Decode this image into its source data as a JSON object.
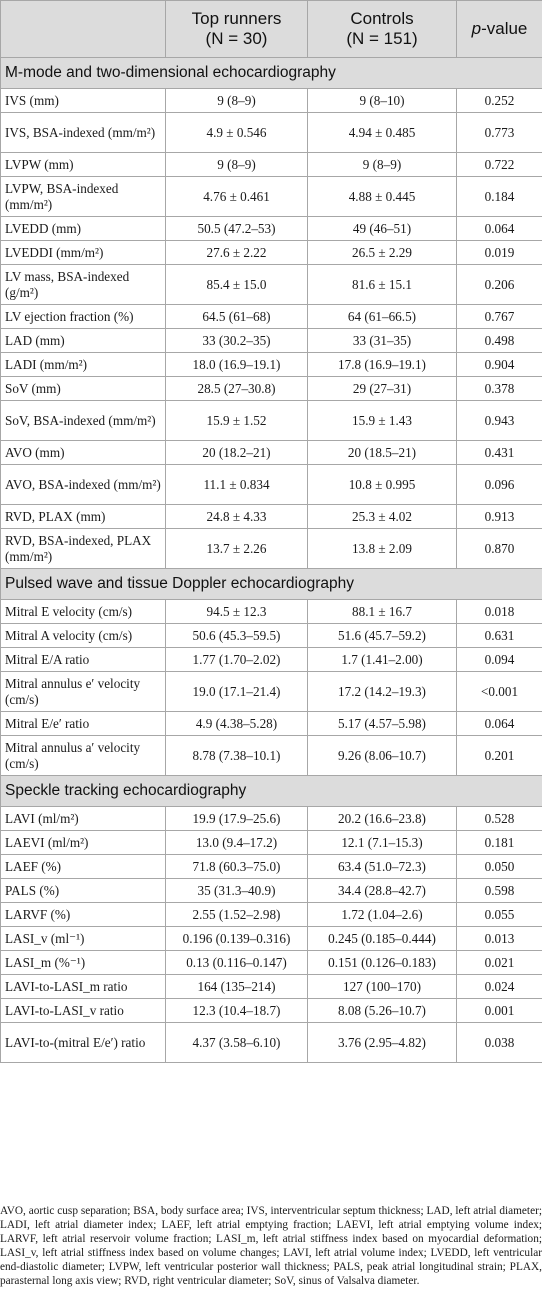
{
  "header": {
    "col1": "",
    "col2_line1": "Top runners",
    "col2_n": "(N = 30)",
    "col3_line1": "Controls",
    "col3_n": "(N = 151)",
    "col4_p": "p",
    "col4_rest": "-value"
  },
  "sections": [
    {
      "title": "M-mode and two-dimensional echocardiography",
      "rows": [
        {
          "label": "IVS (mm)",
          "top": "9 (8–9)",
          "ctrl": "9 (8–10)",
          "p": "0.252"
        },
        {
          "label": "IVS, BSA-indexed (mm/m²)",
          "top": "4.9 ± 0.546",
          "ctrl": "4.94 ± 0.485",
          "p": "0.773"
        },
        {
          "label": "LVPW (mm)",
          "top": "9 (8–9)",
          "ctrl": "9 (8–9)",
          "p": "0.722"
        },
        {
          "label": "LVPW, BSA-indexed (mm/m²)",
          "top": "4.76 ± 0.461",
          "ctrl": "4.88 ± 0.445",
          "p": "0.184"
        },
        {
          "label": "LVEDD (mm)",
          "top": "50.5 (47.2–53)",
          "ctrl": "49 (46–51)",
          "p": "0.064"
        },
        {
          "label": "LVEDDI (mm/m²)",
          "top": "27.6 ± 2.22",
          "ctrl": "26.5 ± 2.29",
          "p": "0.019"
        },
        {
          "label": "LV mass, BSA-indexed (g/m²)",
          "top": "85.4 ± 15.0",
          "ctrl": "81.6 ± 15.1",
          "p": "0.206"
        },
        {
          "label": "LV ejection fraction (%)",
          "top": "64.5 (61–68)",
          "ctrl": "64 (61–66.5)",
          "p": "0.767"
        },
        {
          "label": "LAD (mm)",
          "top": "33 (30.2–35)",
          "ctrl": "33 (31–35)",
          "p": "0.498"
        },
        {
          "label": "LADI (mm/m²)",
          "top": "18.0 (16.9–19.1)",
          "ctrl": "17.8 (16.9–19.1)",
          "p": "0.904"
        },
        {
          "label": "SoV (mm)",
          "top": "28.5 (27–30.8)",
          "ctrl": "29 (27–31)",
          "p": "0.378"
        },
        {
          "label": "SoV, BSA-indexed (mm/m²)",
          "top": "15.9 ± 1.52",
          "ctrl": "15.9 ± 1.43",
          "p": "0.943"
        },
        {
          "label": "AVO (mm)",
          "top": "20 (18.2–21)",
          "ctrl": "20 (18.5–21)",
          "p": "0.431"
        },
        {
          "label": "AVO, BSA-indexed (mm/m²)",
          "top": "11.1 ± 0.834",
          "ctrl": "10.8 ± 0.995",
          "p": "0.096"
        },
        {
          "label": "RVD, PLAX (mm)",
          "top": "24.8 ± 4.33",
          "ctrl": "25.3 ± 4.02",
          "p": "0.913"
        },
        {
          "label": "RVD, BSA-indexed, PLAX (mm/m²)",
          "top": "13.7 ± 2.26",
          "ctrl": "13.8 ± 2.09",
          "p": "0.870"
        }
      ]
    },
    {
      "title": "Pulsed wave and tissue Doppler echocardiography",
      "rows": [
        {
          "label": "Mitral E velocity (cm/s)",
          "top": "94.5 ± 12.3",
          "ctrl": "88.1 ± 16.7",
          "p": "0.018"
        },
        {
          "label": "Mitral A velocity (cm/s)",
          "top": "50.6 (45.3–59.5)",
          "ctrl": "51.6 (45.7–59.2)",
          "p": "0.631"
        },
        {
          "label": "Mitral E/A ratio",
          "top": "1.77 (1.70–2.02)",
          "ctrl": "1.7 (1.41–2.00)",
          "p": "0.094"
        },
        {
          "label": "Mitral annulus e′ velocity (cm/s)",
          "top": "19.0 (17.1–21.4)",
          "ctrl": "17.2 (14.2–19.3)",
          "p": "<0.001"
        },
        {
          "label": "Mitral E/e′ ratio",
          "top": "4.9 (4.38–5.28)",
          "ctrl": "5.17 (4.57–5.98)",
          "p": "0.064"
        },
        {
          "label": "Mitral annulus a′ velocity (cm/s)",
          "top": "8.78 (7.38–10.1)",
          "ctrl": "9.26 (8.06–10.7)",
          "p": "0.201"
        }
      ]
    },
    {
      "title": "Speckle tracking echocardiography",
      "rows": [
        {
          "label": "LAVI (ml/m²)",
          "top": "19.9 (17.9–25.6)",
          "ctrl": "20.2 (16.6–23.8)",
          "p": "0.528"
        },
        {
          "label": "LAEVI (ml/m²)",
          "top": "13.0 (9.4–17.2)",
          "ctrl": "12.1 (7.1–15.3)",
          "p": "0.181"
        },
        {
          "label": "LAEF (%)",
          "top": "71.8 (60.3–75.0)",
          "ctrl": "63.4 (51.0–72.3)",
          "p": "0.050"
        },
        {
          "label": "PALS (%)",
          "top": "35 (31.3–40.9)",
          "ctrl": "34.4 (28.8–42.7)",
          "p": "0.598"
        },
        {
          "label": "LARVF (%)",
          "top": "2.55 (1.52–2.98)",
          "ctrl": "1.72 (1.04–2.6)",
          "p": "0.055"
        },
        {
          "label": "LASI_v (ml⁻¹)",
          "top": "0.196 (0.139–0.316)",
          "ctrl": "0.245 (0.185–0.444)",
          "p": "0.013"
        },
        {
          "label": "LASI_m (%⁻¹)",
          "top": "0.13 (0.116–0.147)",
          "ctrl": "0.151 (0.126–0.183)",
          "p": "0.021"
        },
        {
          "label": "LAVI-to-LASI_m ratio",
          "top": "164 (135–214)",
          "ctrl": "127 (100–170)",
          "p": "0.024"
        },
        {
          "label": "LAVI-to-LASI_v ratio",
          "top": "12.3 (10.4–18.7)",
          "ctrl": "8.08 (5.26–10.7)",
          "p": "0.001"
        },
        {
          "label": "LAVI-to-(mitral E/e′) ratio",
          "top": "4.37 (3.58–6.10)",
          "ctrl": "3.76 (2.95–4.82)",
          "p": "0.038"
        }
      ]
    }
  ],
  "footnote": "AVO, aortic cusp separation; BSA, body surface area; IVS, interventricular septum thickness; LAD, left atrial diameter; LADI, left atrial diameter index; LAEF, left atrial emptying fraction; LAEVI, left atrial emptying volume index; LARVF, left atrial reservoir volume fraction; LASI_m, left atrial stiffness index based on myocardial deformation; LASI_v, left atrial stiffness index based on volume changes; LAVI, left atrial volume index; LVEDD, left ventricular end-diastolic diameter; LVPW, left ventricular posterior wall thickness; PALS, peak atrial longitudinal strain; PLAX, parasternal long axis view; RVD, right ventricular diameter; SoV, sinus of Valsalva diameter."
}
